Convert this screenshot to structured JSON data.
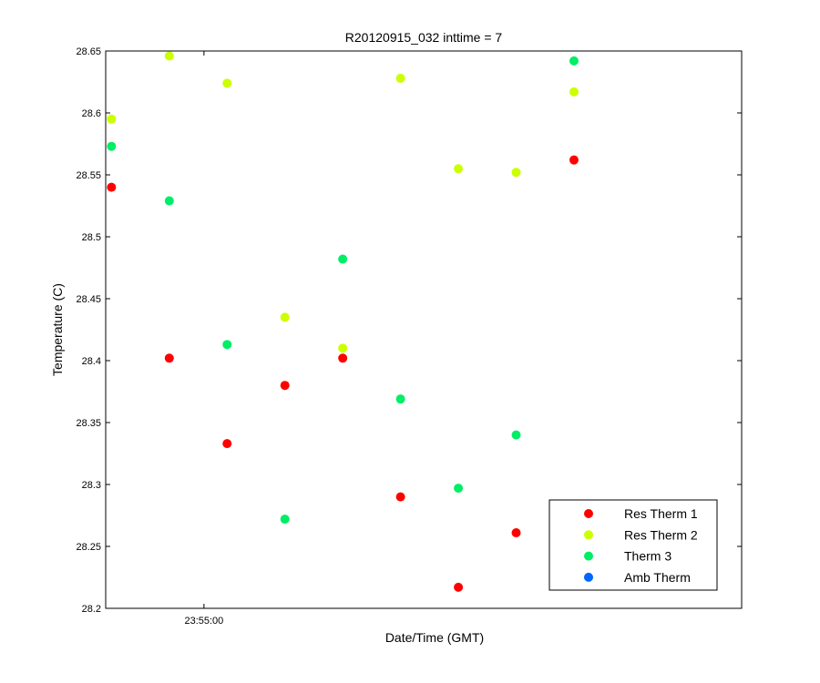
{
  "chart_data": {
    "type": "scatter",
    "title": "R20120915_032 inttime = 7",
    "xlabel": "Date/Time (GMT)",
    "ylabel": "Temperature (C)",
    "ylim": [
      28.2,
      28.65
    ],
    "xlim": [
      0,
      11
    ],
    "yticks": [
      "28.2",
      "28.25",
      "28.3",
      "28.35",
      "28.4",
      "28.45",
      "28.5",
      "28.55",
      "28.6",
      "28.65"
    ],
    "xticks": [
      {
        "x": 1.7,
        "label": "23:55:00"
      }
    ],
    "legend_position": "bottom-right",
    "grid": false,
    "series": [
      {
        "name": "Res Therm 1",
        "color": "#ff0000",
        "x": [
          0.1,
          1.1,
          2.1,
          3.1,
          4.1,
          5.1,
          6.1,
          7.1,
          8.1
        ],
        "y": [
          28.54,
          28.402,
          28.333,
          28.38,
          28.402,
          28.29,
          28.217,
          28.261,
          28.562
        ]
      },
      {
        "name": "Res Therm 2",
        "color": "#ccff00",
        "x": [
          0.1,
          1.1,
          2.1,
          3.1,
          4.1,
          5.1,
          6.1,
          7.1,
          8.1
        ],
        "y": [
          28.595,
          28.646,
          28.624,
          28.435,
          28.41,
          28.628,
          28.555,
          28.552,
          28.617
        ]
      },
      {
        "name": "Therm 3",
        "color": "#00ee66",
        "x": [
          0.1,
          1.1,
          2.1,
          3.1,
          4.1,
          5.1,
          6.1,
          7.1,
          8.1
        ],
        "y": [
          28.573,
          28.529,
          28.413,
          28.272,
          28.482,
          28.369,
          28.297,
          28.34,
          28.642
        ]
      },
      {
        "name": "Amb Therm",
        "color": "#0066ff",
        "x": [],
        "y": []
      }
    ]
  }
}
